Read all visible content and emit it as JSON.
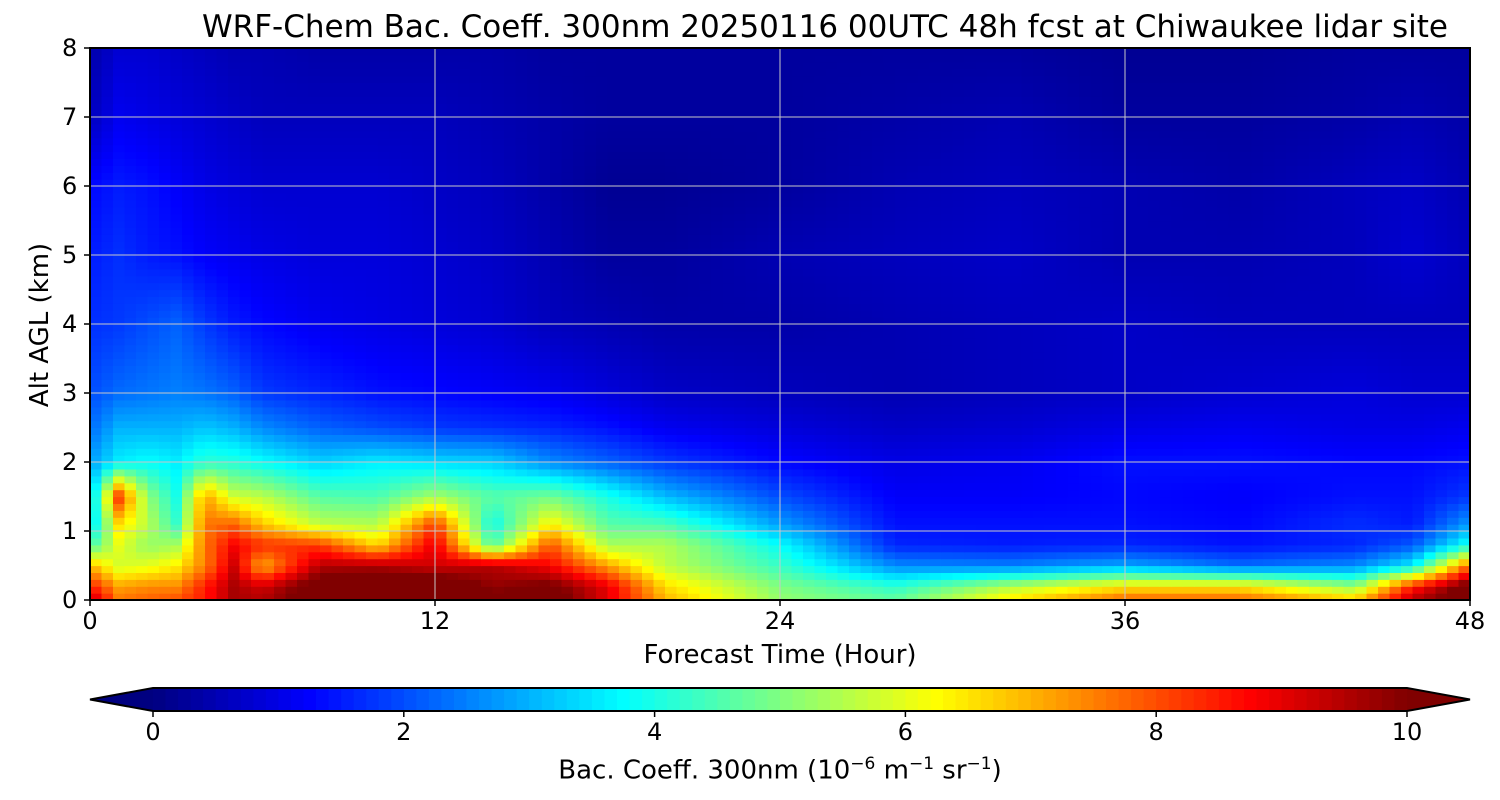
{
  "chart_data": {
    "type": "heatmap",
    "title": "WRF-Chem Bac. Coeff. 300nm  20250116 00UTC 48h fcst at Chiwaukee lidar site",
    "xlabel": "Forecast Time (Hour)",
    "ylabel": "Alt AGL (km)",
    "xlim": [
      0,
      48
    ],
    "ylim": [
      0,
      8
    ],
    "x_ticks": [
      "0",
      "12",
      "24",
      "36",
      "48"
    ],
    "y_ticks": [
      "0",
      "1",
      "2",
      "3",
      "4",
      "5",
      "6",
      "7",
      "8"
    ],
    "grid": true,
    "colorbar": {
      "label_main": "Bac. Coeff. 300nm  (10",
      "label_exp1": "−6",
      "label_mid": " m",
      "label_exp2": "−1",
      "label_end": " sr",
      "label_exp3": "−1",
      "label_close": ")",
      "range": [
        0,
        10
      ],
      "ticks": [
        "0",
        "2",
        "4",
        "6",
        "8",
        "10"
      ],
      "colormap": "jet",
      "extend": "both"
    },
    "x": [
      0,
      1,
      2,
      3,
      4,
      5,
      6,
      8,
      10,
      12,
      14,
      16,
      18,
      20,
      24,
      28,
      32,
      36,
      40,
      44,
      46,
      48
    ],
    "y": [
      0,
      0.2,
      0.5,
      0.8,
      1.1,
      1.5,
      2,
      2.5,
      3,
      4,
      5,
      6,
      7,
      8
    ],
    "z": [
      [
        9.5,
        7.6,
        7.8,
        8.0,
        8.5,
        9.6,
        9.5,
        10.6,
        10.8,
        11.0,
        10.2,
        10.5,
        9.0,
        7.0,
        5.2,
        4.7,
        6.5,
        7.8,
        7.8,
        6.8,
        9.5,
        10.6
      ],
      [
        8.5,
        7.2,
        7.4,
        7.4,
        8.5,
        9.6,
        9.2,
        10.5,
        10.5,
        10.8,
        9.8,
        10.2,
        9.0,
        6.6,
        5.0,
        4.2,
        5.5,
        6.5,
        6.5,
        5.2,
        8.5,
        10.5
      ],
      [
        7.0,
        5.8,
        6.0,
        6.4,
        7.5,
        9.2,
        7.0,
        9.5,
        9.6,
        9.2,
        9.5,
        8.8,
        7.2,
        5.6,
        4.3,
        2.6,
        2.5,
        2.9,
        2.3,
        2.6,
        3.6,
        7.8
      ],
      [
        4.4,
        6.0,
        5.2,
        5.4,
        7.6,
        8.8,
        8.3,
        8.2,
        6.6,
        9.0,
        4.5,
        8.0,
        5.4,
        5.5,
        3.8,
        1.6,
        1.5,
        1.6,
        1.4,
        1.6,
        2.1,
        4.0
      ],
      [
        3.2,
        6.5,
        5.6,
        4.3,
        7.6,
        7.8,
        6.8,
        5.6,
        5.5,
        8.2,
        3.8,
        6.4,
        4.6,
        4.5,
        2.8,
        1.4,
        1.4,
        1.4,
        1.3,
        1.7,
        1.5,
        2.8
      ],
      [
        3.0,
        8.2,
        5.2,
        4.0,
        7.2,
        5.8,
        5.6,
        4.6,
        4.5,
        5.4,
        4.6,
        4.9,
        4.0,
        3.1,
        2.0,
        1.2,
        1.2,
        1.3,
        1.2,
        1.4,
        1.4,
        1.8
      ],
      [
        2.8,
        3.6,
        3.8,
        3.6,
        4.2,
        4.1,
        3.8,
        3.3,
        3.6,
        3.4,
        3.3,
        2.6,
        2.2,
        1.8,
        1.3,
        1.0,
        1.1,
        1.4,
        1.4,
        1.3,
        1.3,
        1.4
      ],
      [
        2.3,
        3.0,
        3.0,
        3.0,
        3.2,
        3.0,
        2.6,
        2.2,
        2.0,
        1.8,
        1.7,
        1.6,
        1.4,
        1.1,
        0.9,
        0.7,
        0.8,
        1.0,
        1.1,
        1.0,
        1.0,
        1.1
      ],
      [
        2.0,
        2.3,
        2.4,
        2.5,
        2.4,
        2.2,
        1.8,
        1.6,
        1.4,
        1.3,
        1.2,
        1.1,
        0.9,
        0.7,
        0.6,
        0.5,
        0.6,
        0.7,
        0.8,
        0.9,
        0.8,
        0.8
      ],
      [
        1.7,
        1.8,
        2.0,
        2.2,
        1.8,
        1.5,
        1.3,
        1.1,
        1.0,
        0.9,
        0.8,
        0.6,
        0.5,
        0.4,
        0.4,
        0.5,
        0.6,
        0.7,
        0.6,
        0.6,
        0.6,
        0.6
      ],
      [
        1.5,
        1.7,
        1.5,
        1.4,
        1.2,
        1.1,
        1.0,
        0.9,
        0.9,
        0.8,
        0.7,
        0.5,
        0.3,
        0.3,
        0.5,
        0.6,
        0.7,
        0.5,
        0.5,
        0.6,
        0.8,
        0.6
      ],
      [
        1.3,
        1.5,
        1.4,
        1.2,
        1.0,
        0.9,
        0.8,
        0.8,
        0.8,
        0.7,
        0.6,
        0.4,
        0.2,
        0.2,
        0.3,
        0.5,
        0.6,
        0.5,
        0.4,
        0.6,
        0.7,
        0.5
      ],
      [
        0.6,
        1.1,
        1.0,
        0.9,
        0.8,
        0.7,
        0.6,
        0.6,
        0.6,
        0.6,
        0.5,
        0.4,
        0.3,
        0.3,
        0.3,
        0.4,
        0.5,
        0.3,
        0.3,
        0.4,
        0.5,
        0.4
      ],
      [
        0.4,
        0.8,
        0.8,
        0.7,
        0.6,
        0.5,
        0.5,
        0.4,
        0.4,
        0.4,
        0.4,
        0.3,
        0.3,
        0.3,
        0.3,
        0.3,
        0.3,
        0.2,
        0.2,
        0.3,
        0.3,
        0.3
      ]
    ]
  }
}
